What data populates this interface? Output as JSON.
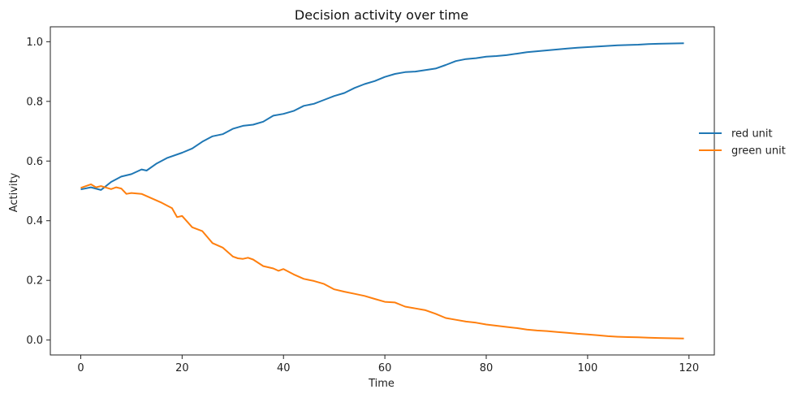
{
  "chart_data": {
    "type": "line",
    "title": "Decision activity over time",
    "xlabel": "Time",
    "ylabel": "Activity",
    "xlim": [
      -6,
      125
    ],
    "ylim": [
      -0.05,
      1.05
    ],
    "xticks": [
      0,
      20,
      40,
      60,
      80,
      100,
      120
    ],
    "xtick_labels": [
      "0",
      "20",
      "40",
      "60",
      "80",
      "100",
      "120"
    ],
    "yticks": [
      0,
      0.2,
      0.4,
      0.6,
      0.8,
      1.0
    ],
    "ytick_labels": [
      "0.0",
      "0.2",
      "0.4",
      "0.6",
      "0.8",
      "1.0"
    ],
    "grid": false,
    "legend_position": "center-right-outside",
    "series": [
      {
        "name": "red unit",
        "color": "#1f77b4",
        "x": [
          0,
          2,
          4,
          6,
          8,
          10,
          12,
          13,
          15,
          17,
          20,
          22,
          24,
          26,
          28,
          30,
          32,
          34,
          36,
          38,
          40,
          42,
          44,
          46,
          48,
          50,
          52,
          54,
          56,
          58,
          60,
          62,
          64,
          66,
          68,
          70,
          72,
          74,
          76,
          78,
          80,
          82,
          84,
          86,
          88,
          90,
          92,
          94,
          96,
          98,
          100,
          102,
          104,
          106,
          108,
          110,
          112,
          114,
          116,
          119
        ],
        "y": [
          0.505,
          0.512,
          0.503,
          0.53,
          0.548,
          0.556,
          0.572,
          0.568,
          0.592,
          0.61,
          0.628,
          0.642,
          0.665,
          0.683,
          0.69,
          0.708,
          0.718,
          0.722,
          0.732,
          0.752,
          0.758,
          0.768,
          0.785,
          0.792,
          0.805,
          0.818,
          0.828,
          0.845,
          0.858,
          0.868,
          0.882,
          0.892,
          0.898,
          0.9,
          0.905,
          0.91,
          0.922,
          0.935,
          0.942,
          0.945,
          0.95,
          0.952,
          0.955,
          0.96,
          0.965,
          0.968,
          0.971,
          0.974,
          0.977,
          0.98,
          0.982,
          0.984,
          0.986,
          0.988,
          0.989,
          0.99,
          0.992,
          0.993,
          0.994,
          0.995
        ]
      },
      {
        "name": "green unit",
        "color": "#ff7f0e",
        "x": [
          0,
          2,
          3,
          4,
          6,
          7,
          8,
          9,
          10,
          12,
          14,
          16,
          18,
          19,
          20,
          22,
          24,
          26,
          28,
          30,
          31,
          32,
          33,
          34,
          36,
          38,
          39,
          40,
          42,
          44,
          46,
          48,
          50,
          52,
          54,
          56,
          58,
          60,
          62,
          64,
          66,
          68,
          70,
          72,
          74,
          76,
          78,
          80,
          82,
          84,
          86,
          88,
          90,
          92,
          94,
          96,
          98,
          100,
          102,
          104,
          106,
          108,
          110,
          112,
          114,
          116,
          119
        ],
        "y": [
          0.51,
          0.522,
          0.512,
          0.516,
          0.506,
          0.512,
          0.508,
          0.49,
          0.493,
          0.49,
          0.475,
          0.46,
          0.442,
          0.412,
          0.416,
          0.378,
          0.365,
          0.325,
          0.31,
          0.28,
          0.274,
          0.272,
          0.276,
          0.27,
          0.248,
          0.24,
          0.232,
          0.238,
          0.22,
          0.205,
          0.198,
          0.188,
          0.17,
          0.162,
          0.155,
          0.148,
          0.138,
          0.128,
          0.126,
          0.112,
          0.106,
          0.1,
          0.088,
          0.074,
          0.068,
          0.062,
          0.058,
          0.052,
          0.048,
          0.044,
          0.04,
          0.035,
          0.032,
          0.03,
          0.027,
          0.024,
          0.021,
          0.019,
          0.016,
          0.013,
          0.011,
          0.01,
          0.009,
          0.008,
          0.007,
          0.006,
          0.005
        ]
      }
    ]
  }
}
